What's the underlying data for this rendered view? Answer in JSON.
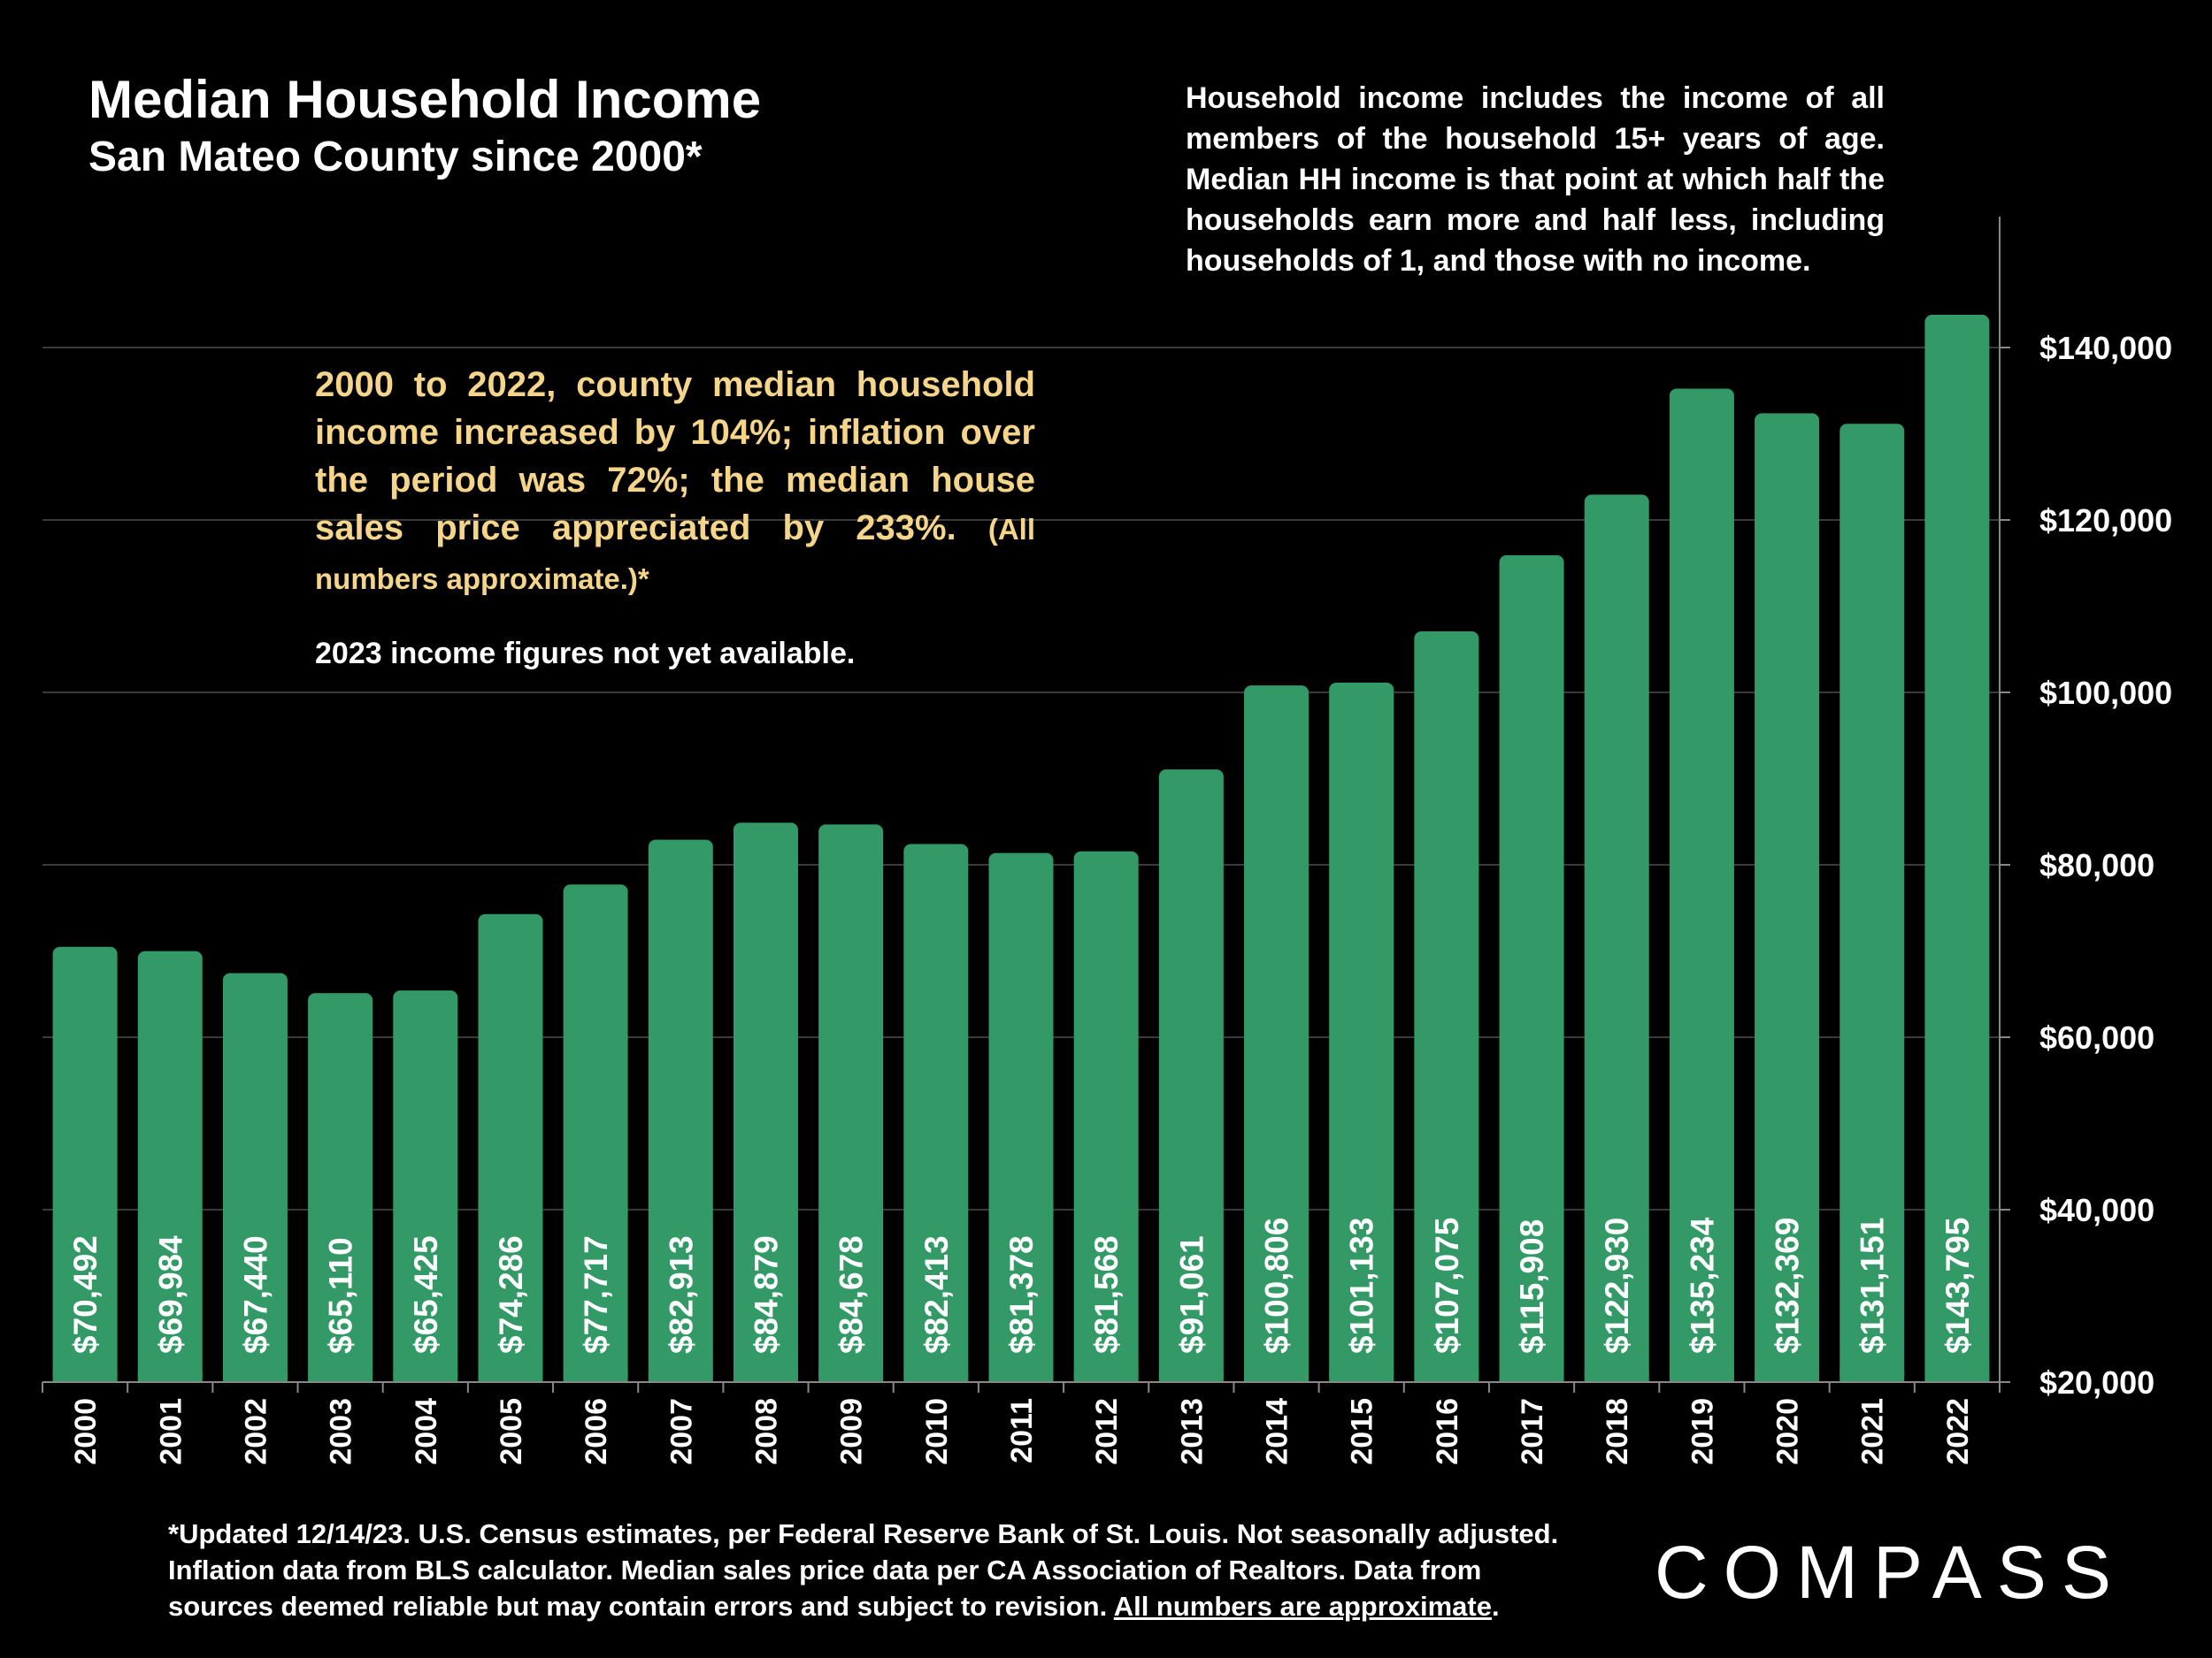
{
  "chart_data": {
    "type": "bar",
    "title": "Median Household Income",
    "subtitle": "San Mateo County since 2000*",
    "categories": [
      "2000",
      "2001",
      "2002",
      "2003",
      "2004",
      "2005",
      "2006",
      "2007",
      "2008",
      "2009",
      "2010",
      "2011",
      "2012",
      "2013",
      "2014",
      "2015",
      "2016",
      "2017",
      "2018",
      "2019",
      "2020",
      "2021",
      "2022"
    ],
    "values": [
      70492,
      69984,
      67440,
      65110,
      65425,
      74286,
      77717,
      82913,
      84879,
      84678,
      82413,
      81378,
      81568,
      91061,
      100806,
      101133,
      107075,
      115908,
      122930,
      135234,
      132369,
      131151,
      143795
    ],
    "data_labels": [
      "$70,492",
      "$69,984",
      "$67,440",
      "$65,110",
      "$65,425",
      "$74,286",
      "$77,717",
      "$82,913",
      "$84,879",
      "$84,678",
      "$82,413",
      "$81,378",
      "$81,568",
      "$91,061",
      "$100,806",
      "$101,133",
      "$107,075",
      "$115,908",
      "$122,930",
      "$135,234",
      "$132,369",
      "$131,151",
      "$143,795"
    ],
    "yticks": [
      20000,
      40000,
      60000,
      80000,
      100000,
      120000,
      140000
    ],
    "ytick_labels": [
      "$20,000",
      "$40,000",
      "$60,000",
      "$80,000",
      "$100,000",
      "$120,000",
      "$140,000"
    ],
    "ylim": [
      20000,
      150000
    ],
    "y_axis_side": "right",
    "grid": true,
    "bar_color": "#339966",
    "background_color": "#000000",
    "xlabel": "",
    "ylabel": ""
  },
  "definition_text": "Household income includes the income of all members of the household 15+ years of age. Median HH income is that point at which half the households earn more and half less, including households of 1, and those with no income.",
  "annotation": {
    "main": "2000 to 2022, county median household income increased by 104%; inflation over the period was 72%; the median house sales price appreciated by 233%.",
    "small": "(All numbers approximate.)*",
    "color": "#f5d58a"
  },
  "note_2023": "2023 income figures not yet available.",
  "footnote": {
    "text": "*Updated 12/14/23. U.S. Census estimates, per Federal Reserve Bank of St. Louis. Not seasonally adjusted. Inflation data from BLS calculator. Median sales price data per CA Association of Realtors. Data from sources deemed reliable but may contain errors and subject to revision.",
    "underlined": "All numbers are approximate",
    "end": "."
  },
  "logo_text": "COMPASS"
}
